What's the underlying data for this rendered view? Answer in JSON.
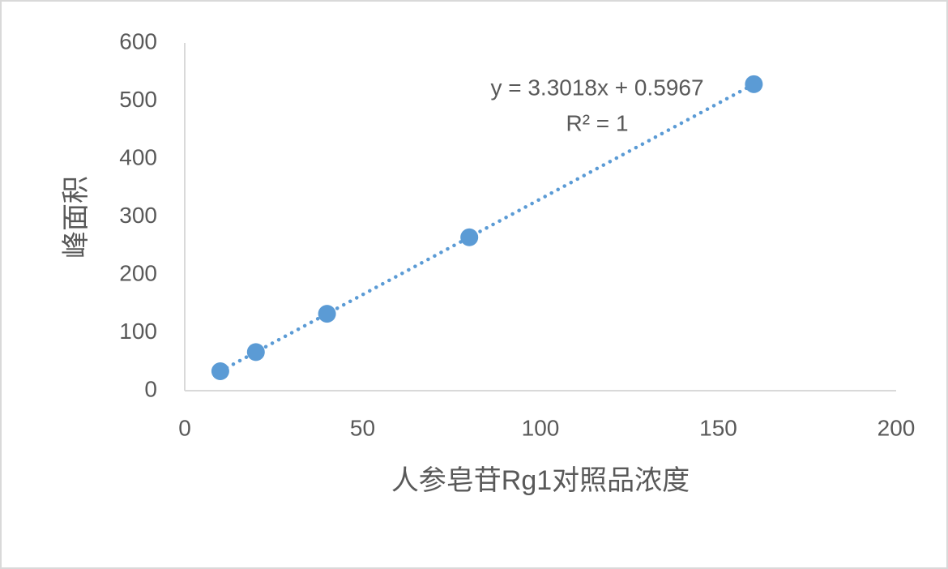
{
  "chart_data": {
    "type": "scatter",
    "x_label": "人参皂苷Rg1对照品浓度",
    "y_label": "峰面积",
    "series": [
      {
        "color": "#5b9bd5",
        "x": [
          10,
          20,
          40,
          80,
          160
        ],
        "values": [
          33.6,
          66.6,
          132.7,
          264.7,
          528.9
        ]
      }
    ],
    "trendline": {
      "slope": 3.3018,
      "intercept": 0.5967,
      "label": "y = 3.3018x + 0.5967",
      "r2_label": "R² = 1",
      "color": "#5b9bd5"
    },
    "xlim": [
      0,
      200
    ],
    "xticks": [
      0,
      50,
      100,
      150,
      200
    ],
    "ylim": [
      0,
      600
    ],
    "yticks": [
      0,
      100,
      200,
      300,
      400,
      500,
      600
    ],
    "grid": false
  }
}
